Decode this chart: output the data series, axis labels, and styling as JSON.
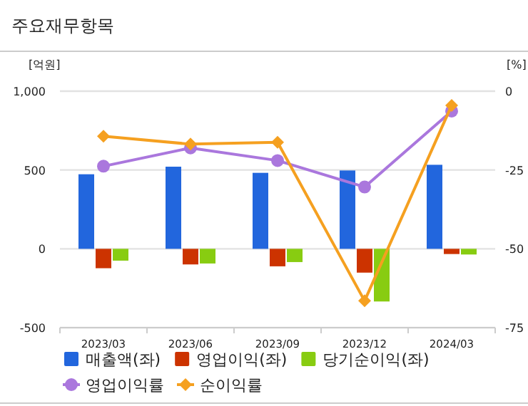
{
  "chart_data": {
    "type": "bar",
    "title": "주요재무항목",
    "ylabel": "[억원]",
    "y2label": "[%]",
    "categories": [
      "2023/03",
      "2023/06",
      "2023/09",
      "2023/12",
      "2024/03"
    ],
    "series": [
      {
        "name": "매출액(좌)",
        "color": "#2266dd",
        "values": [
          473,
          521,
          482,
          497,
          533
        ]
      },
      {
        "name": "영업이익(좌)",
        "color": "#cc3300",
        "values": [
          -123,
          -99,
          -111,
          -151,
          -33
        ]
      },
      {
        "name": "당기순이익(좌)",
        "color": "#88cc11",
        "values": [
          -75,
          -93,
          -84,
          -334,
          -36
        ]
      },
      {
        "name": "영업이익률",
        "type": "line",
        "axis": "y2",
        "marker": "circle",
        "color": "#aa77dd",
        "values": [
          -23.8,
          -18,
          -22,
          -30.4,
          -6.3
        ]
      },
      {
        "name": "순이익률",
        "type": "line",
        "axis": "y2",
        "marker": "diamond",
        "color": "#f5a020",
        "values": [
          -14.3,
          -16.8,
          -16.2,
          -66.5,
          -4.5
        ]
      }
    ],
    "ylim": [
      -500,
      1000
    ],
    "yticks": [
      -500,
      0,
      500,
      {
        "value": 1000,
        "label": "1,000"
      }
    ],
    "y2lim": [
      -75,
      0
    ],
    "y2ticks": [
      -75,
      -50,
      -25,
      0
    ],
    "grid": "y",
    "legend": "bottom"
  }
}
